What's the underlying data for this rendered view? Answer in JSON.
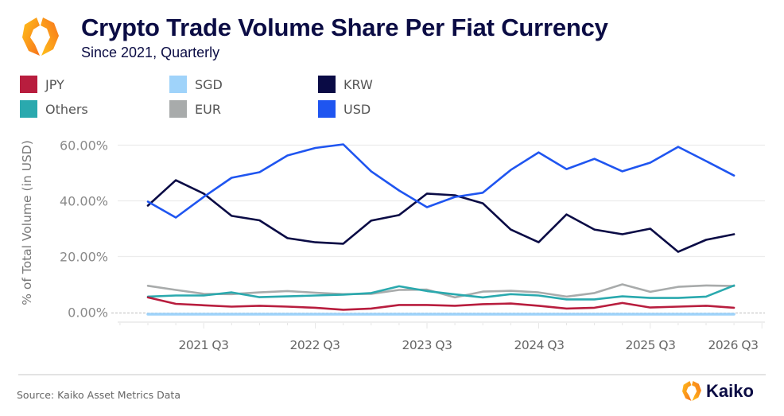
{
  "header": {
    "title": "Crypto Trade Volume Share Per Fiat Currency",
    "subtitle": "Since 2021, Quarterly",
    "logo_icon": "kaiko-hexagon-logo-icon"
  },
  "footer": {
    "source": "Source: Kaiko Asset Metrics Data",
    "brand": "Kaiko"
  },
  "colors": {
    "title": "#0b0c44",
    "JPY": "#b81d3e",
    "SGD": "#9fd3fa",
    "KRW": "#0a0b45",
    "Others": "#2aa9ae",
    "EUR": "#a8abab",
    "USD": "#1f55f0"
  },
  "chart_data": {
    "type": "line",
    "title": "Crypto Trade Volume Share Per Fiat Currency",
    "subtitle": "Since 2021, Quarterly",
    "xlabel": "",
    "ylabel": "% of Total Volume (in USD)",
    "ylim": [
      0,
      60
    ],
    "yticks": [
      0,
      20,
      40,
      60
    ],
    "ytick_labels": [
      "0.00%",
      "20.00%",
      "40.00%",
      "60.00%"
    ],
    "xtick_labels": [
      "2021 Q3",
      "2022 Q3",
      "2023 Q3",
      "2024 Q3",
      "2025 Q3",
      "2026 Q3"
    ],
    "grid": true,
    "legend": {
      "placement": "top",
      "entries": [
        "JPY",
        "SGD",
        "KRW",
        "Others",
        "EUR",
        "USD"
      ]
    },
    "x": [
      "2021 Q1",
      "2021 Q2",
      "2021 Q3",
      "2021 Q4",
      "2022 Q1",
      "2022 Q2",
      "2022 Q3",
      "2022 Q4",
      "2023 Q1",
      "2023 Q2",
      "2023 Q3",
      "2023 Q4",
      "2024 Q1",
      "2024 Q2",
      "2024 Q3",
      "2024 Q4",
      "2025 Q1",
      "2025 Q2",
      "2025 Q3",
      "2025 Q4",
      "2026 Q1",
      "2026 Q2"
    ],
    "series": [
      {
        "name": "JPY",
        "values": [
          5.3,
          3.0,
          2.5,
          2.0,
          2.3,
          2.0,
          1.6,
          0.9,
          1.3,
          2.6,
          2.6,
          2.3,
          2.9,
          3.1,
          2.3,
          1.3,
          1.6,
          3.3,
          1.7,
          2.0,
          2.3,
          1.6
        ]
      },
      {
        "name": "SGD",
        "values": [
          0.0,
          0.0,
          0.0,
          0.0,
          0.0,
          0.0,
          0.0,
          0.0,
          0.0,
          0.0,
          0.0,
          0.0,
          0.0,
          0.0,
          0.0,
          0.0,
          0.0,
          0.0,
          0.0,
          0.0,
          0.0,
          0.0
        ]
      },
      {
        "name": "KRW",
        "values": [
          38.3,
          47.4,
          42.6,
          34.6,
          33.0,
          26.6,
          25.1,
          24.6,
          32.9,
          34.9,
          42.6,
          42.0,
          39.1,
          29.7,
          25.1,
          35.1,
          29.7,
          28.0,
          30.0,
          21.7,
          26.0,
          28.0
        ]
      },
      {
        "name": "Others",
        "values": [
          5.6,
          6.0,
          6.0,
          7.1,
          5.4,
          5.7,
          6.0,
          6.3,
          6.9,
          9.3,
          7.6,
          6.4,
          5.3,
          6.5,
          6.0,
          4.6,
          4.6,
          5.7,
          5.1,
          5.1,
          5.6,
          9.6
        ]
      },
      {
        "name": "EUR",
        "values": [
          9.5,
          8.0,
          6.6,
          6.5,
          7.1,
          7.6,
          7.0,
          6.5,
          6.6,
          8.0,
          8.1,
          5.3,
          7.4,
          7.7,
          7.1,
          5.6,
          6.9,
          10.0,
          7.3,
          9.1,
          9.6,
          9.4
        ]
      },
      {
        "name": "USD",
        "values": [
          39.7,
          34.0,
          41.4,
          48.3,
          50.3,
          56.3,
          59.0,
          60.3,
          50.6,
          43.7,
          37.7,
          41.4,
          42.9,
          51.1,
          57.4,
          51.4,
          55.1,
          50.6,
          53.7,
          59.4,
          54.3,
          49.1
        ]
      }
    ]
  }
}
